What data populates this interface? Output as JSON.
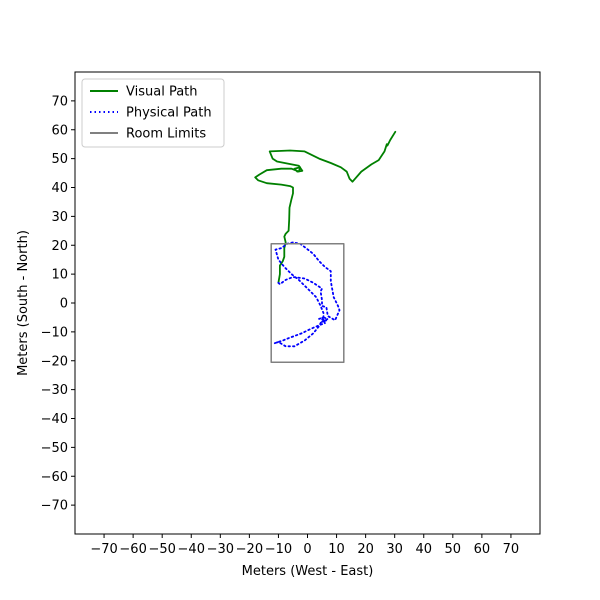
{
  "chart_data": {
    "type": "line",
    "title": "",
    "xlabel": "Meters (West - East)",
    "ylabel": "Meters (South - North)",
    "xlim": [
      -80,
      80
    ],
    "ylim": [
      -80,
      80
    ],
    "xticks": [
      -70,
      -60,
      -50,
      -40,
      -30,
      -20,
      -10,
      0,
      10,
      20,
      30,
      40,
      50,
      60,
      70
    ],
    "yticks": [
      70,
      60,
      50,
      40,
      30,
      20,
      10,
      0,
      -10,
      -20,
      -30,
      -40,
      -50,
      -60,
      -70
    ],
    "grid": false,
    "legend_position": "top-left",
    "series": [
      {
        "name": "Visual Path",
        "color": "#008000",
        "style": "solid",
        "points": [
          [
            30.2,
            59.3
          ],
          [
            28.5,
            56.5
          ],
          [
            27.5,
            54.5
          ],
          [
            27.3,
            55.0
          ],
          [
            26.5,
            52.5
          ],
          [
            24.5,
            49.5
          ],
          [
            22.0,
            48.0
          ],
          [
            18.5,
            45.5
          ],
          [
            15.5,
            42.0
          ],
          [
            14.5,
            43.0
          ],
          [
            13.5,
            45.5
          ],
          [
            11.5,
            47.0
          ],
          [
            8.0,
            48.5
          ],
          [
            4.0,
            50.0
          ],
          [
            -1.0,
            52.5
          ],
          [
            -6.0,
            52.8
          ],
          [
            -13.0,
            52.5
          ],
          [
            -12.0,
            50.0
          ],
          [
            -10.5,
            49.0
          ],
          [
            -7.0,
            48.3
          ],
          [
            -3.0,
            47.5
          ],
          [
            -1.8,
            45.8
          ],
          [
            -3.5,
            45.5
          ],
          [
            -4.5,
            46.5
          ],
          [
            -2.5,
            47.0
          ],
          [
            -3.0,
            45.5
          ],
          [
            -5.5,
            46.5
          ],
          [
            -9.0,
            46.5
          ],
          [
            -14.0,
            46.0
          ],
          [
            -16.5,
            44.5
          ],
          [
            -18.0,
            43.5
          ],
          [
            -17.0,
            42.5
          ],
          [
            -14.0,
            41.5
          ],
          [
            -9.0,
            41.0
          ],
          [
            -6.0,
            40.5
          ],
          [
            -5.0,
            40.0
          ],
          [
            -5.0,
            38.0
          ],
          [
            -5.5,
            36.0
          ],
          [
            -6.2,
            33.0
          ],
          [
            -6.3,
            29.0
          ],
          [
            -6.5,
            25.0
          ],
          [
            -7.5,
            24.0
          ],
          [
            -8.0,
            23.0
          ],
          [
            -7.5,
            21.0
          ],
          [
            -8.0,
            19.0
          ],
          [
            -8.0,
            16.0
          ],
          [
            -8.5,
            14.5
          ],
          [
            -9.5,
            13.0
          ],
          [
            -9.5,
            10.0
          ],
          [
            -10.0,
            7.0
          ]
        ]
      },
      {
        "name": "Physical Path",
        "color": "#0000ff",
        "style": "dotted",
        "points": [
          [
            -10.0,
            7.0
          ],
          [
            -9.5,
            6.5
          ],
          [
            -7.5,
            8.0
          ],
          [
            -5.0,
            9.0
          ],
          [
            -1.0,
            8.5
          ],
          [
            2.0,
            7.0
          ],
          [
            5.0,
            5.0
          ],
          [
            4.5,
            4.0
          ],
          [
            5.0,
            1.0
          ],
          [
            5.0,
            -1.0
          ],
          [
            6.5,
            -1.5
          ],
          [
            7.0,
            -4.5
          ],
          [
            9.5,
            -6.0
          ],
          [
            11.0,
            -2.5
          ],
          [
            10.5,
            -1.0
          ],
          [
            9.0,
            2.0
          ],
          [
            8.0,
            7.5
          ],
          [
            8.0,
            11.0
          ],
          [
            6.0,
            12.5
          ],
          [
            4.0,
            14.5
          ],
          [
            2.0,
            17.0
          ],
          [
            -0.5,
            19.0
          ],
          [
            -2.5,
            20.5
          ],
          [
            -5.0,
            21.0
          ],
          [
            -7.0,
            20.5
          ],
          [
            -9.0,
            19.0
          ],
          [
            -11.0,
            18.5
          ],
          [
            -10.0,
            15.0
          ],
          [
            -8.0,
            12.5
          ],
          [
            -5.5,
            10.0
          ],
          [
            -3.0,
            8.0
          ],
          [
            0.5,
            4.5
          ],
          [
            3.0,
            2.0
          ],
          [
            4.5,
            -1.0
          ],
          [
            5.5,
            -3.5
          ],
          [
            5.5,
            -5.0
          ],
          [
            4.0,
            -5.5
          ],
          [
            6.5,
            -6.0
          ],
          [
            5.0,
            -6.5
          ],
          [
            7.0,
            -5.5
          ],
          [
            5.0,
            -4.8
          ],
          [
            6.0,
            -7.0
          ],
          [
            4.5,
            -7.5
          ],
          [
            1.0,
            -9.0
          ],
          [
            -2.0,
            -10.5
          ],
          [
            -6.0,
            -12.0
          ],
          [
            -8.5,
            -13.0
          ],
          [
            -11.5,
            -14.0
          ],
          [
            -10.0,
            -13.5
          ],
          [
            -7.5,
            -15.0
          ],
          [
            -4.5,
            -15.0
          ],
          [
            -1.0,
            -13.0
          ],
          [
            2.0,
            -10.5
          ],
          [
            4.0,
            -8.0
          ],
          [
            5.0,
            -6.0
          ]
        ]
      },
      {
        "name": "Room Limits",
        "color": "#808080",
        "style": "solid",
        "points": [
          [
            -12.5,
            -20.5
          ],
          [
            12.5,
            -20.5
          ],
          [
            12.5,
            20.5
          ],
          [
            -12.5,
            20.5
          ],
          [
            -12.5,
            -20.5
          ]
        ]
      }
    ]
  }
}
